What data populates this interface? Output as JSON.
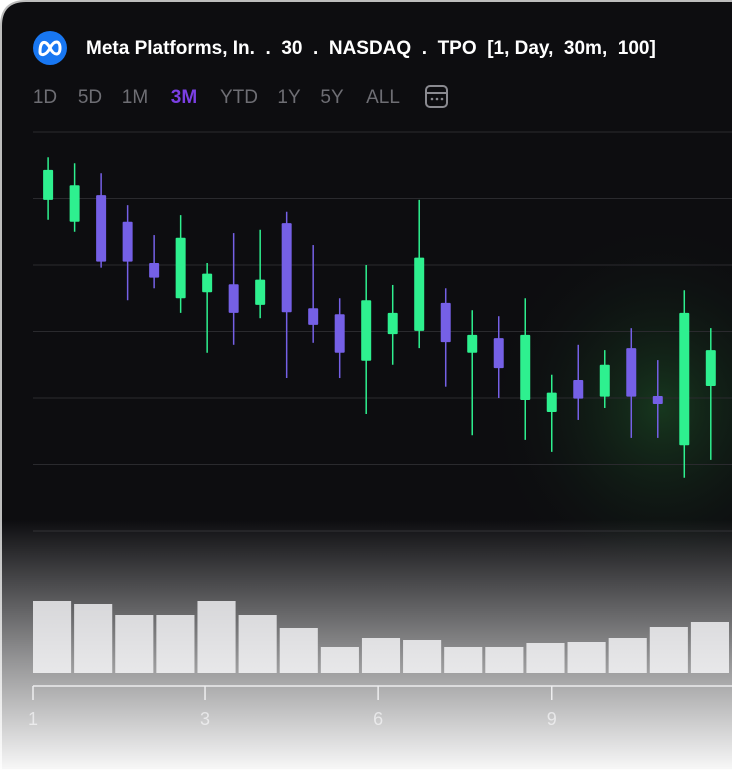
{
  "header": {
    "title": "Meta Platforms, In.  .  30  .  NASDAQ  .  TPO  [1, Day,  30m,  100]",
    "ranges": [
      "1D",
      "5D",
      "1M",
      "3M",
      "YTD",
      "1Y",
      "5Y",
      "ALL"
    ],
    "active_range": 3
  },
  "chart_data": [
    {
      "type": "candlestick",
      "up_color": "#2ef08f",
      "down_color": "#7560e6",
      "x": [
        0,
        1,
        2,
        3,
        4,
        5,
        6,
        7,
        8,
        9,
        10,
        11,
        12,
        13,
        14,
        15,
        16,
        17,
        18,
        19,
        20,
        21,
        22,
        23,
        24,
        25
      ],
      "open": [
        49.8,
        46.5,
        50.5,
        46.5,
        40.3,
        35.0,
        35.9,
        37.1,
        34.0,
        46.3,
        33.5,
        32.6,
        25.6,
        29.6,
        30.1,
        34.3,
        26.8,
        29.0,
        19.7,
        17.9,
        22.7,
        20.2,
        27.5,
        20.3,
        12.9,
        21.8
      ],
      "high": [
        56.2,
        55.3,
        53.8,
        49.0,
        44.5,
        47.5,
        40.3,
        44.8,
        45.3,
        48.0,
        43.0,
        35.0,
        40.0,
        37.0,
        49.8,
        36.5,
        33.2,
        32.3,
        35.0,
        23.5,
        28.0,
        27.2,
        30.5,
        25.7,
        36.2,
        30.5
      ],
      "low": [
        46.8,
        45.0,
        39.6,
        34.7,
        36.5,
        32.8,
        26.8,
        28.0,
        32.0,
        23.0,
        28.3,
        23.0,
        17.6,
        25.0,
        27.5,
        21.7,
        14.4,
        20.0,
        13.7,
        11.9,
        16.7,
        18.5,
        14.0,
        14.0,
        8.0,
        10.7
      ],
      "close": [
        54.3,
        52.0,
        40.5,
        40.5,
        38.1,
        44.1,
        38.7,
        32.8,
        37.8,
        32.9,
        31.0,
        26.8,
        34.7,
        32.8,
        41.1,
        28.4,
        29.5,
        24.5,
        29.5,
        20.8,
        19.9,
        25.0,
        20.2,
        19.1,
        32.8,
        27.2
      ],
      "xlim": [
        -0.57,
        25.8
      ],
      "xticks": [
        {
          "value": -0.57,
          "label": "1"
        },
        {
          "value": 5.92,
          "label": "3"
        },
        {
          "value": 12.45,
          "label": "6"
        },
        {
          "value": 19,
          "label": "9"
        }
      ],
      "ylim": [
        0,
        60
      ],
      "yticks": [
        0,
        10,
        20,
        30,
        40,
        50,
        60
      ],
      "grid": true
    },
    {
      "type": "bar",
      "color": "#c4c4c8",
      "categories": [
        null,
        null,
        null,
        null,
        null,
        null,
        null,
        null,
        null,
        null,
        null,
        null,
        null,
        null,
        null,
        null,
        null
      ],
      "values": [
        72,
        69,
        58,
        58,
        72,
        58,
        45,
        26,
        35,
        33,
        26,
        26,
        30,
        31,
        35,
        46,
        51
      ],
      "ylim": [
        0,
        100
      ]
    }
  ]
}
